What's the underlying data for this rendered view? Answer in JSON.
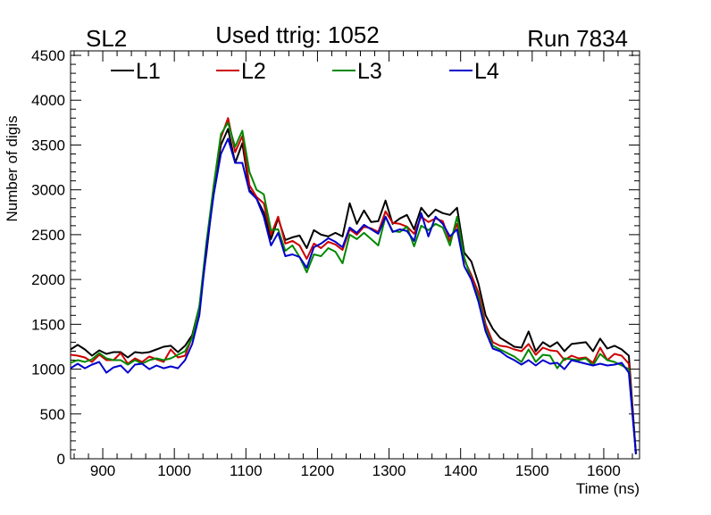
{
  "chart_data": {
    "type": "line",
    "title": "Used ttrig: 1052",
    "label_left": "SL2",
    "label_right": "Run 7834",
    "xlabel": "Time (ns)",
    "ylabel": "Number of digis",
    "xlim": [
      855,
      1650
    ],
    "ylim": [
      0,
      4550
    ],
    "x_ticks": [
      900,
      1000,
      1100,
      1200,
      1300,
      1400,
      1500,
      1600
    ],
    "y_ticks": [
      0,
      500,
      1000,
      1500,
      2000,
      2500,
      3000,
      3500,
      4000,
      4500
    ],
    "legend_position": "top",
    "x": [
      855,
      865,
      875,
      885,
      895,
      905,
      915,
      925,
      935,
      945,
      955,
      965,
      975,
      985,
      995,
      1005,
      1015,
      1025,
      1035,
      1045,
      1055,
      1065,
      1075,
      1085,
      1095,
      1105,
      1115,
      1125,
      1135,
      1145,
      1155,
      1165,
      1175,
      1185,
      1195,
      1205,
      1215,
      1225,
      1235,
      1245,
      1255,
      1265,
      1275,
      1285,
      1295,
      1305,
      1315,
      1325,
      1335,
      1345,
      1355,
      1365,
      1375,
      1385,
      1395,
      1405,
      1415,
      1425,
      1435,
      1445,
      1455,
      1465,
      1475,
      1485,
      1495,
      1505,
      1515,
      1525,
      1535,
      1545,
      1555,
      1565,
      1575,
      1585,
      1595,
      1605,
      1615,
      1625,
      1635,
      1645
    ],
    "series": [
      {
        "name": "L1",
        "color": "#000000",
        "values": [
          1220,
          1270,
          1220,
          1150,
          1210,
          1170,
          1190,
          1190,
          1130,
          1190,
          1180,
          1190,
          1220,
          1250,
          1260,
          1190,
          1260,
          1380,
          1700,
          2300,
          3000,
          3500,
          3680,
          3300,
          3520,
          3000,
          2900,
          2750,
          2450,
          2680,
          2440,
          2470,
          2490,
          2350,
          2550,
          2500,
          2480,
          2520,
          2480,
          2850,
          2620,
          2770,
          2640,
          2650,
          2880,
          2620,
          2680,
          2720,
          2560,
          2800,
          2700,
          2780,
          2740,
          2720,
          2800,
          2300,
          2200,
          1950,
          1600,
          1450,
          1350,
          1300,
          1250,
          1240,
          1420,
          1200,
          1300,
          1250,
          1300,
          1200,
          1280,
          1290,
          1300,
          1200,
          1340,
          1230,
          1260,
          1220,
          1150,
          50
        ]
      },
      {
        "name": "L2",
        "color": "#cc0000",
        "values": [
          1160,
          1150,
          1130,
          1080,
          1160,
          1100,
          1100,
          1180,
          1060,
          1120,
          1080,
          1140,
          1110,
          1080,
          1220,
          1130,
          1150,
          1360,
          1680,
          2350,
          3050,
          3580,
          3800,
          3420,
          3600,
          3050,
          2920,
          2850,
          2500,
          2700,
          2400,
          2430,
          2380,
          2230,
          2400,
          2350,
          2420,
          2390,
          2330,
          2560,
          2500,
          2590,
          2570,
          2530,
          2760,
          2630,
          2620,
          2590,
          2510,
          2700,
          2640,
          2680,
          2650,
          2430,
          2620,
          2220,
          2050,
          1850,
          1500,
          1300,
          1260,
          1250,
          1220,
          1200,
          1280,
          1160,
          1240,
          1210,
          1200,
          1100,
          1150,
          1120,
          1130,
          1070,
          1240,
          1100,
          1170,
          1150,
          1060,
          50
        ]
      },
      {
        "name": "L3",
        "color": "#008800",
        "values": [
          1070,
          1100,
          1080,
          1110,
          1180,
          1120,
          1100,
          1100,
          1050,
          1100,
          1060,
          1100,
          1120,
          1100,
          1120,
          1160,
          1200,
          1350,
          1700,
          2420,
          3050,
          3620,
          3750,
          3480,
          3660,
          3200,
          3000,
          2950,
          2550,
          2560,
          2320,
          2380,
          2250,
          2080,
          2280,
          2260,
          2350,
          2310,
          2180,
          2500,
          2450,
          2520,
          2450,
          2380,
          2700,
          2540,
          2530,
          2590,
          2370,
          2600,
          2550,
          2620,
          2580,
          2380,
          2700,
          2250,
          2000,
          1800,
          1450,
          1260,
          1220,
          1180,
          1140,
          1080,
          1220,
          1080,
          1160,
          1150,
          1010,
          1120,
          1110,
          1100,
          1120,
          1040,
          1170,
          1100,
          1080,
          1040,
          1000,
          50
        ]
      },
      {
        "name": "L4",
        "color": "#0000cc",
        "values": [
          1010,
          1060,
          1010,
          1050,
          1080,
          960,
          1020,
          1040,
          960,
          1050,
          1060,
          1000,
          1040,
          1010,
          1030,
          1010,
          1100,
          1280,
          1600,
          2350,
          2950,
          3400,
          3570,
          3300,
          3300,
          2980,
          2900,
          2700,
          2380,
          2520,
          2260,
          2280,
          2250,
          2130,
          2360,
          2400,
          2460,
          2420,
          2360,
          2580,
          2520,
          2610,
          2560,
          2510,
          2700,
          2530,
          2560,
          2540,
          2430,
          2740,
          2480,
          2700,
          2620,
          2480,
          2560,
          2150,
          2000,
          1750,
          1420,
          1230,
          1200,
          1140,
          1100,
          1050,
          1100,
          1040,
          1100,
          1060,
          1070,
          1000,
          1100,
          1080,
          1060,
          1040,
          1060,
          1040,
          1050,
          1070,
          960,
          50
        ]
      }
    ]
  }
}
